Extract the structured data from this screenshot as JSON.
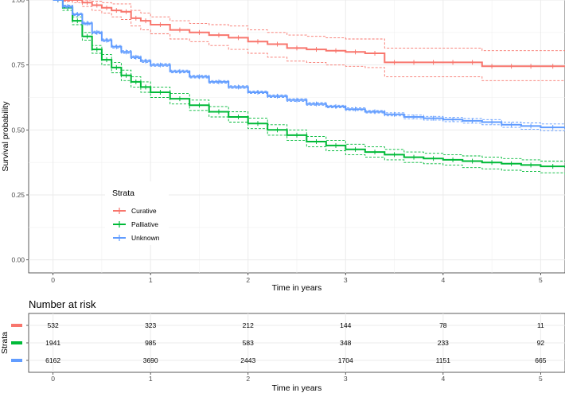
{
  "chart_data": {
    "type": "line",
    "subtype": "kaplan-meier",
    "xlabel": "Time in years",
    "ylabel": "Survival probability",
    "xlim": [
      -0.25,
      5.25
    ],
    "ylim": [
      -0.05,
      1.0
    ],
    "x_ticks": [
      0,
      1,
      2,
      3,
      4,
      5
    ],
    "y_ticks": [
      0.0,
      0.25,
      0.5,
      0.75,
      1.0
    ],
    "y_tick_labels": [
      "0.00",
      "0.25",
      "0.50",
      "0.75",
      "1.00"
    ],
    "grid": true,
    "confidence_bands": true,
    "legend": {
      "title": "Strata",
      "position": "lower-left inside",
      "entries": [
        "Curative",
        "Palliative",
        "Unknown"
      ]
    },
    "series": [
      {
        "name": "Curative",
        "color": "#F8766D",
        "x": [
          0,
          0.1,
          0.2,
          0.3,
          0.4,
          0.5,
          0.6,
          0.7,
          0.8,
          0.9,
          1.0,
          1.2,
          1.4,
          1.6,
          1.8,
          2.0,
          2.2,
          2.4,
          2.6,
          2.8,
          3.0,
          3.2,
          3.4,
          3.6,
          3.8,
          4.0,
          4.2,
          4.4,
          4.6,
          4.8,
          5.0,
          5.25
        ],
        "values": [
          1.0,
          1.0,
          1.0,
          0.99,
          0.98,
          0.97,
          0.96,
          0.955,
          0.93,
          0.92,
          0.905,
          0.885,
          0.875,
          0.865,
          0.855,
          0.84,
          0.83,
          0.815,
          0.81,
          0.805,
          0.8,
          0.795,
          0.76,
          0.76,
          0.76,
          0.76,
          0.76,
          0.745,
          0.745,
          0.745,
          0.745,
          0.745
        ],
        "lower": [
          1.0,
          0.995,
          0.99,
          0.975,
          0.96,
          0.95,
          0.935,
          0.925,
          0.9,
          0.885,
          0.87,
          0.85,
          0.84,
          0.825,
          0.81,
          0.795,
          0.78,
          0.765,
          0.76,
          0.75,
          0.745,
          0.74,
          0.705,
          0.705,
          0.705,
          0.705,
          0.705,
          0.69,
          0.69,
          0.69,
          0.69,
          0.69
        ],
        "upper": [
          1.0,
          1.0,
          1.0,
          1.0,
          0.995,
          0.99,
          0.985,
          0.985,
          0.96,
          0.95,
          0.935,
          0.92,
          0.91,
          0.905,
          0.9,
          0.885,
          0.875,
          0.865,
          0.86,
          0.855,
          0.85,
          0.85,
          0.815,
          0.815,
          0.815,
          0.815,
          0.815,
          0.805,
          0.805,
          0.805,
          0.805,
          0.805
        ]
      },
      {
        "name": "Palliative",
        "color": "#00BA38",
        "x": [
          0,
          0.1,
          0.2,
          0.3,
          0.4,
          0.5,
          0.6,
          0.7,
          0.8,
          0.9,
          1.0,
          1.2,
          1.4,
          1.6,
          1.8,
          2.0,
          2.2,
          2.4,
          2.6,
          2.8,
          3.0,
          3.2,
          3.4,
          3.6,
          3.8,
          4.0,
          4.2,
          4.4,
          4.6,
          4.8,
          5.0,
          5.25
        ],
        "values": [
          1.0,
          0.97,
          0.92,
          0.86,
          0.81,
          0.77,
          0.74,
          0.71,
          0.685,
          0.665,
          0.645,
          0.62,
          0.595,
          0.57,
          0.55,
          0.525,
          0.5,
          0.48,
          0.455,
          0.44,
          0.425,
          0.415,
          0.405,
          0.395,
          0.39,
          0.385,
          0.38,
          0.375,
          0.37,
          0.365,
          0.36,
          0.355
        ],
        "lower": [
          1.0,
          0.96,
          0.905,
          0.845,
          0.795,
          0.75,
          0.72,
          0.69,
          0.665,
          0.645,
          0.625,
          0.6,
          0.575,
          0.55,
          0.53,
          0.505,
          0.48,
          0.46,
          0.435,
          0.42,
          0.405,
          0.395,
          0.385,
          0.375,
          0.37,
          0.365,
          0.355,
          0.35,
          0.345,
          0.34,
          0.335,
          0.325
        ],
        "upper": [
          1.0,
          0.98,
          0.935,
          0.875,
          0.825,
          0.79,
          0.76,
          0.73,
          0.705,
          0.685,
          0.665,
          0.64,
          0.615,
          0.59,
          0.57,
          0.545,
          0.52,
          0.5,
          0.475,
          0.46,
          0.445,
          0.435,
          0.425,
          0.415,
          0.41,
          0.405,
          0.4,
          0.395,
          0.39,
          0.385,
          0.38,
          0.38
        ]
      },
      {
        "name": "Unknown",
        "color": "#619CFF",
        "x": [
          0,
          0.1,
          0.2,
          0.3,
          0.4,
          0.5,
          0.6,
          0.7,
          0.8,
          0.9,
          1.0,
          1.2,
          1.4,
          1.6,
          1.8,
          2.0,
          2.2,
          2.4,
          2.6,
          2.8,
          3.0,
          3.2,
          3.4,
          3.6,
          3.8,
          4.0,
          4.2,
          4.4,
          4.6,
          4.8,
          5.0,
          5.25
        ],
        "values": [
          1.0,
          0.975,
          0.945,
          0.91,
          0.875,
          0.845,
          0.82,
          0.8,
          0.78,
          0.765,
          0.75,
          0.725,
          0.705,
          0.685,
          0.665,
          0.645,
          0.63,
          0.615,
          0.6,
          0.59,
          0.58,
          0.57,
          0.56,
          0.55,
          0.545,
          0.54,
          0.535,
          0.53,
          0.52,
          0.515,
          0.51,
          0.505
        ],
        "lower": [
          1.0,
          0.97,
          0.94,
          0.905,
          0.87,
          0.84,
          0.815,
          0.795,
          0.775,
          0.76,
          0.745,
          0.72,
          0.7,
          0.68,
          0.66,
          0.64,
          0.625,
          0.61,
          0.595,
          0.585,
          0.575,
          0.565,
          0.554,
          0.543,
          0.538,
          0.532,
          0.526,
          0.52,
          0.51,
          0.503,
          0.497,
          0.49
        ],
        "upper": [
          1.0,
          0.98,
          0.95,
          0.915,
          0.88,
          0.85,
          0.825,
          0.805,
          0.785,
          0.77,
          0.755,
          0.73,
          0.71,
          0.69,
          0.67,
          0.65,
          0.635,
          0.62,
          0.605,
          0.595,
          0.585,
          0.575,
          0.566,
          0.557,
          0.552,
          0.548,
          0.544,
          0.54,
          0.53,
          0.527,
          0.523,
          0.52
        ]
      }
    ]
  },
  "risk_table": {
    "title": "Number at risk",
    "ylabel": "Strata",
    "xlabel": "Time in years",
    "x_ticks": [
      0,
      1,
      2,
      3,
      4,
      5
    ],
    "rows": [
      {
        "name": "Curative",
        "color": "#F8766D",
        "values": [
          532,
          323,
          212,
          144,
          78,
          11
        ]
      },
      {
        "name": "Palliative",
        "color": "#00BA38",
        "values": [
          1941,
          985,
          583,
          348,
          233,
          92
        ]
      },
      {
        "name": "Unknown",
        "color": "#619CFF",
        "values": [
          6162,
          3690,
          2443,
          1704,
          1151,
          665
        ]
      }
    ]
  }
}
